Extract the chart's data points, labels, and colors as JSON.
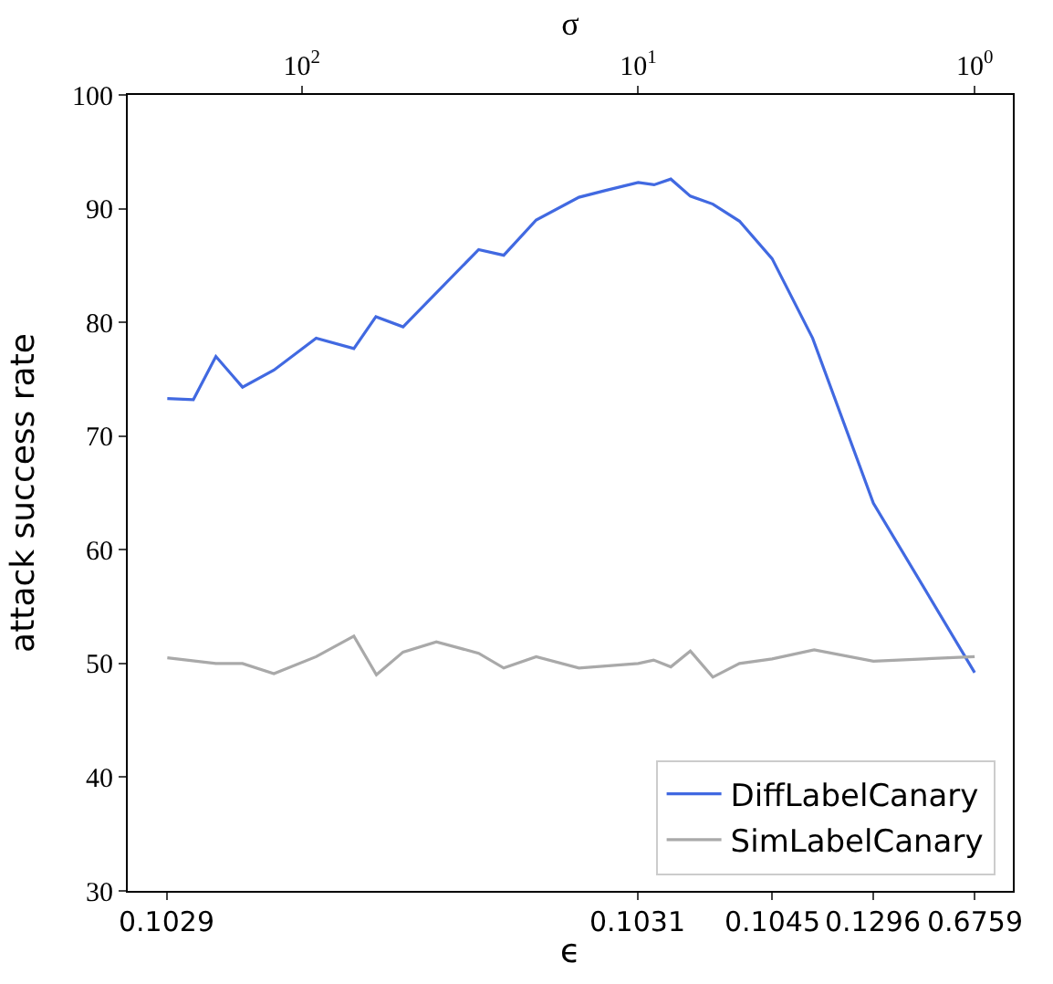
{
  "chart_data": {
    "type": "line",
    "xlabel": "σ",
    "x2label": "ϵ",
    "ylabel": "attack success rate",
    "log": "x",
    "xlim": [
      329,
      0.77
    ],
    "xticks": [
      {
        "value": 100,
        "label": "10$^{2}$"
      },
      {
        "value": 10,
        "label": "10$^{1}$"
      },
      {
        "value": 1,
        "label": "10$^{0}$"
      }
    ],
    "annotations": [
      {
        "text": "0.1029",
        "x": 251
      },
      {
        "text": "0.1031",
        "x": 10
      },
      {
        "text": "0.1045",
        "x": 4
      },
      {
        "text": "0.1296",
        "x": 2
      },
      {
        "text": "0.6759",
        "x": 1
      }
    ],
    "ylim": [
      30,
      100
    ],
    "yticks": [
      30,
      40,
      50,
      60,
      70,
      80,
      90,
      100
    ],
    "legend": "bottom right",
    "line_style": "solid",
    "marker": "none",
    "series": [
      {
        "name": "DiffLabelCanary",
        "color": "#4169e1",
        "x": [
          251,
          210,
          180,
          150,
          121,
          90.6,
          70,
          60.2,
          50,
          29.8,
          25.1,
          20.1,
          15,
          12.5,
          10,
          8.97,
          8,
          7,
          6,
          5,
          4,
          3.03,
          2,
          1
        ],
        "values": [
          73.3,
          73.2,
          77.0,
          74.3,
          75.8,
          78.6,
          77.7,
          80.5,
          79.6,
          86.4,
          85.9,
          89.0,
          91.0,
          91.6,
          92.3,
          92.1,
          92.6,
          91.1,
          90.4,
          88.9,
          85.6,
          78.6,
          64.1,
          49.2
        ]
      },
      {
        "name": "SimLabelCanary",
        "color": "#a9a9a9",
        "x": [
          251,
          180,
          150,
          121,
          90.6,
          70,
          60,
          50,
          39.8,
          29.8,
          25.1,
          20.1,
          15,
          10,
          9,
          8,
          7,
          6,
          5,
          4,
          3,
          2,
          1
        ],
        "values": [
          50.5,
          50.0,
          50.0,
          49.1,
          50.6,
          52.4,
          49.0,
          51.0,
          51.9,
          50.9,
          49.6,
          50.6,
          49.6,
          50.0,
          50.3,
          49.7,
          51.1,
          48.8,
          50.0,
          50.4,
          51.2,
          50.2,
          50.6
        ]
      }
    ]
  }
}
